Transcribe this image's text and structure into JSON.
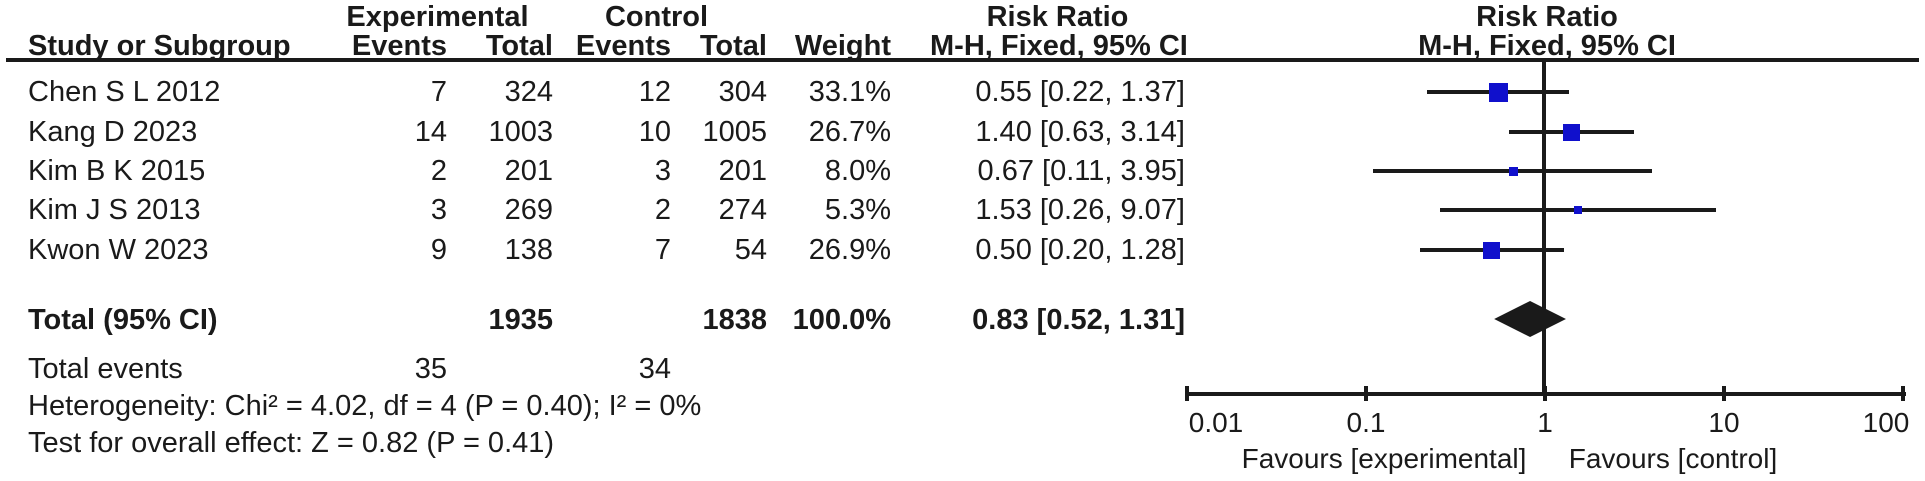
{
  "header": {
    "experimental": "Experimental",
    "control": "Control",
    "risk_ratio_left": "Risk Ratio",
    "risk_ratio_right": "Risk Ratio",
    "study_or_subgroup": "Study or Subgroup",
    "events_exp": "Events",
    "total_exp": "Total",
    "events_ctl": "Events",
    "total_ctl": "Total",
    "weight": "Weight",
    "method_left": "M-H, Fixed, 95% CI",
    "method_right": "M-H, Fixed, 95% CI"
  },
  "chart_data": {
    "type": "forest",
    "effect_measure": "Risk Ratio",
    "method": "M-H, Fixed, 95% CI",
    "x_scale": "log10",
    "x_ticks": [
      0.01,
      0.1,
      1,
      10,
      100
    ],
    "x_tick_labels": [
      "0.01",
      "0.1",
      "1",
      "10",
      "100"
    ],
    "studies": [
      {
        "name": "Chen S L 2012",
        "events_exp": 7,
        "total_exp": 324,
        "events_ctl": 12,
        "total_ctl": 304,
        "weight_pct": 33.1,
        "weight_label": "33.1%",
        "rr": 0.55,
        "ci_low": 0.22,
        "ci_high": 1.37,
        "rr_label": "0.55 [0.22, 1.37]"
      },
      {
        "name": "Kang D 2023",
        "events_exp": 14,
        "total_exp": 1003,
        "events_ctl": 10,
        "total_ctl": 1005,
        "weight_pct": 26.7,
        "weight_label": "26.7%",
        "rr": 1.4,
        "ci_low": 0.63,
        "ci_high": 3.14,
        "rr_label": "1.40 [0.63, 3.14]"
      },
      {
        "name": "Kim B K 2015",
        "events_exp": 2,
        "total_exp": 201,
        "events_ctl": 3,
        "total_ctl": 201,
        "weight_pct": 8.0,
        "weight_label": "8.0%",
        "rr": 0.67,
        "ci_low": 0.11,
        "ci_high": 3.95,
        "rr_label": "0.67 [0.11, 3.95]"
      },
      {
        "name": "Kim J S 2013",
        "events_exp": 3,
        "total_exp": 269,
        "events_ctl": 2,
        "total_ctl": 274,
        "weight_pct": 5.3,
        "weight_label": "5.3%",
        "rr": 1.53,
        "ci_low": 0.26,
        "ci_high": 9.07,
        "rr_label": "1.53 [0.26, 9.07]"
      },
      {
        "name": "Kwon W 2023",
        "events_exp": 9,
        "total_exp": 138,
        "events_ctl": 7,
        "total_ctl": 54,
        "weight_pct": 26.9,
        "weight_label": "26.9%",
        "rr": 0.5,
        "ci_low": 0.2,
        "ci_high": 1.28,
        "rr_label": "0.50 [0.20, 1.28]"
      }
    ],
    "total": {
      "label": "Total (95% CI)",
      "total_exp": 1935,
      "total_ctl": 1838,
      "weight_label": "100.0%",
      "rr": 0.83,
      "ci_low": 0.52,
      "ci_high": 1.31,
      "rr_label": "0.83 [0.52, 1.31]"
    },
    "total_events": {
      "label": "Total events",
      "exp": 35,
      "ctl": 34
    },
    "heterogeneity": "Heterogeneity: Chi² = 4.02, df = 4 (P = 0.40); I² = 0%",
    "overall_effect": "Test for overall effect: Z = 0.82 (P = 0.41)",
    "favours_left": "Favours [experimental]",
    "favours_right": "Favours [control]",
    "marker_color": "#1010CC",
    "line_color": "#1a1a1a"
  }
}
